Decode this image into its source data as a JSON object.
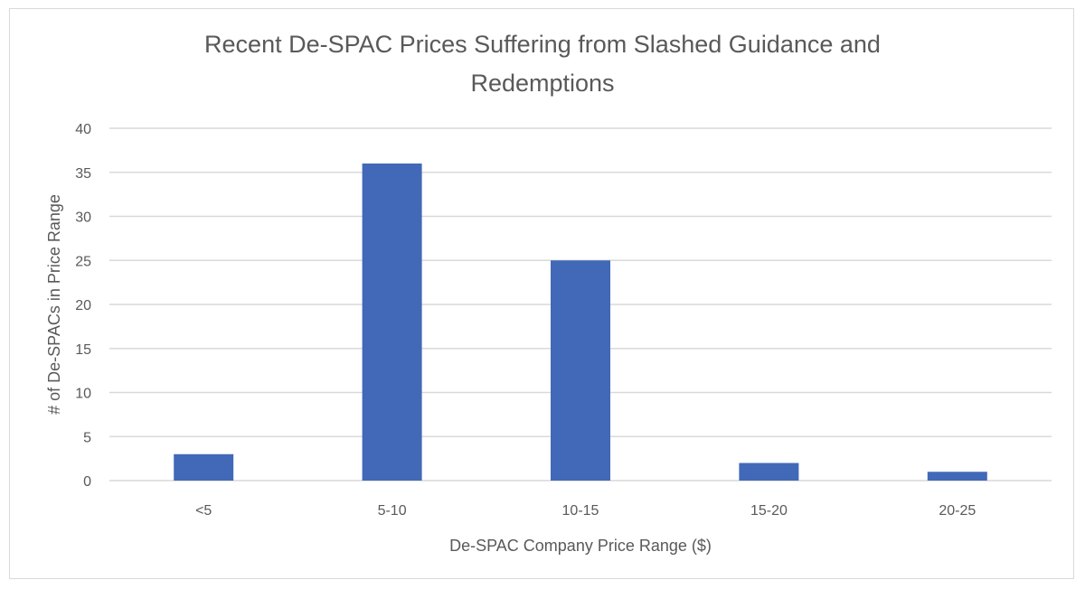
{
  "chart_data": {
    "type": "bar",
    "title_lines": [
      "Recent De-SPAC Prices Suffering from Slashed Guidance and",
      "Redemptions"
    ],
    "xlabel": "De-SPAC Company Price Range ($)",
    "ylabel": "# of De-SPACs in Price Range",
    "categories": [
      "<5",
      "5-10",
      "10-15",
      "15-20",
      "20-25"
    ],
    "values": [
      3,
      36,
      25,
      2,
      1
    ],
    "ylim": [
      0,
      40
    ],
    "yticks": [
      "0",
      "5",
      "10",
      "15",
      "20",
      "25",
      "30",
      "35",
      "40"
    ],
    "grid": true,
    "legend": "none",
    "bar_color": "#4169b8",
    "grid_color": "#d9d9d9"
  }
}
